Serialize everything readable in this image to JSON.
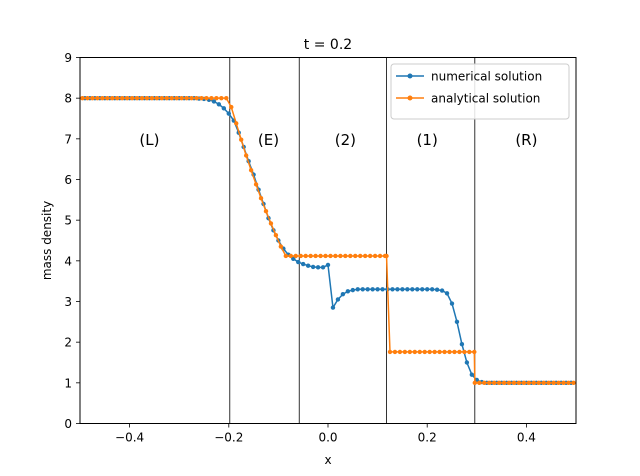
{
  "chart_data": {
    "type": "line",
    "title": "t = 0.2",
    "xlabel": "x",
    "ylabel": "mass density",
    "xlim": [
      -0.5,
      0.5
    ],
    "ylim": [
      0,
      9
    ],
    "xticks": [
      -0.4,
      -0.2,
      0.0,
      0.2,
      0.4
    ],
    "xtick_labels": [
      "−0.4",
      "−0.2",
      "0.0",
      "0.2",
      "0.4"
    ],
    "yticks": [
      0,
      1,
      2,
      3,
      4,
      5,
      6,
      7,
      8,
      9
    ],
    "ytick_labels": [
      "0",
      "1",
      "2",
      "3",
      "4",
      "5",
      "6",
      "7",
      "8",
      "9"
    ],
    "grid": false,
    "legend_position": "top-right",
    "region_boundaries": [
      -0.198,
      -0.058,
      0.118,
      0.296
    ],
    "region_labels": [
      {
        "text": "(L)",
        "x": -0.36,
        "y": 6.85
      },
      {
        "text": "(E)",
        "x": -0.12,
        "y": 6.85
      },
      {
        "text": "(2)",
        "x": 0.035,
        "y": 6.85
      },
      {
        "text": "(1)",
        "x": 0.2,
        "y": 6.85
      },
      {
        "text": "(R)",
        "x": 0.4,
        "y": 6.85
      }
    ],
    "series": [
      {
        "name": "numerical solution",
        "color": "#1f77b4",
        "x": [
          -0.49,
          -0.48,
          -0.47,
          -0.46,
          -0.45,
          -0.44,
          -0.43,
          -0.42,
          -0.41,
          -0.4,
          -0.39,
          -0.38,
          -0.37,
          -0.36,
          -0.35,
          -0.34,
          -0.33,
          -0.32,
          -0.31,
          -0.3,
          -0.29,
          -0.28,
          -0.27,
          -0.26,
          -0.25,
          -0.24,
          -0.23,
          -0.22,
          -0.21,
          -0.2,
          -0.19,
          -0.18,
          -0.17,
          -0.16,
          -0.15,
          -0.14,
          -0.13,
          -0.12,
          -0.11,
          -0.1,
          -0.09,
          -0.08,
          -0.07,
          -0.06,
          -0.05,
          -0.04,
          -0.03,
          -0.02,
          -0.01,
          0.0,
          0.01,
          0.02,
          0.03,
          0.04,
          0.05,
          0.06,
          0.07,
          0.08,
          0.09,
          0.1,
          0.11,
          0.12,
          0.13,
          0.14,
          0.15,
          0.16,
          0.17,
          0.18,
          0.19,
          0.2,
          0.21,
          0.22,
          0.23,
          0.24,
          0.25,
          0.26,
          0.27,
          0.28,
          0.29,
          0.3,
          0.31,
          0.32,
          0.33,
          0.34,
          0.35,
          0.36,
          0.37,
          0.38,
          0.39,
          0.4,
          0.41,
          0.42,
          0.43,
          0.44,
          0.45,
          0.46,
          0.47,
          0.48,
          0.49
        ],
        "y": [
          8.0,
          8.0,
          8.0,
          8.0,
          8.0,
          8.0,
          8.0,
          8.0,
          8.0,
          8.0,
          8.0,
          8.0,
          8.0,
          8.0,
          8.0,
          8.0,
          8.0,
          8.0,
          8.0,
          8.0,
          8.0,
          8.0,
          8.0,
          7.99,
          7.98,
          7.96,
          7.92,
          7.85,
          7.75,
          7.62,
          7.45,
          7.15,
          6.8,
          6.45,
          6.12,
          5.75,
          5.4,
          5.05,
          4.75,
          4.5,
          4.3,
          4.15,
          4.05,
          3.97,
          3.92,
          3.88,
          3.85,
          3.84,
          3.84,
          3.9,
          2.85,
          3.05,
          3.18,
          3.25,
          3.28,
          3.3,
          3.3,
          3.3,
          3.3,
          3.3,
          3.3,
          3.3,
          3.3,
          3.3,
          3.3,
          3.3,
          3.3,
          3.3,
          3.3,
          3.3,
          3.3,
          3.29,
          3.27,
          3.2,
          2.95,
          2.5,
          1.95,
          1.5,
          1.2,
          1.07,
          1.02,
          1.0,
          1.0,
          1.0,
          1.0,
          1.0,
          1.0,
          1.0,
          1.0,
          1.0,
          1.0,
          1.0,
          1.0,
          1.0,
          1.0,
          1.0,
          1.0,
          1.0,
          1.0
        ]
      },
      {
        "name": "analytical solution",
        "color": "#ff7f0e",
        "x": [
          -0.495,
          -0.485,
          -0.475,
          -0.465,
          -0.455,
          -0.445,
          -0.435,
          -0.425,
          -0.415,
          -0.405,
          -0.395,
          -0.385,
          -0.375,
          -0.365,
          -0.355,
          -0.345,
          -0.335,
          -0.325,
          -0.315,
          -0.305,
          -0.295,
          -0.285,
          -0.275,
          -0.265,
          -0.255,
          -0.245,
          -0.235,
          -0.225,
          -0.215,
          -0.205,
          -0.195,
          -0.185,
          -0.175,
          -0.165,
          -0.155,
          -0.145,
          -0.135,
          -0.125,
          -0.115,
          -0.105,
          -0.095,
          -0.085,
          -0.075,
          -0.065,
          -0.055,
          -0.045,
          -0.035,
          -0.025,
          -0.015,
          -0.005,
          0.005,
          0.015,
          0.025,
          0.035,
          0.045,
          0.055,
          0.065,
          0.075,
          0.085,
          0.095,
          0.105,
          0.115,
          0.118,
          0.125,
          0.135,
          0.145,
          0.155,
          0.165,
          0.175,
          0.185,
          0.195,
          0.205,
          0.215,
          0.225,
          0.235,
          0.245,
          0.255,
          0.265,
          0.275,
          0.285,
          0.295,
          0.296,
          0.305,
          0.315,
          0.325,
          0.335,
          0.345,
          0.355,
          0.365,
          0.375,
          0.385,
          0.395,
          0.405,
          0.415,
          0.425,
          0.435,
          0.445,
          0.455,
          0.465,
          0.475,
          0.485,
          0.495
        ],
        "y": [
          8.0,
          8.0,
          8.0,
          8.0,
          8.0,
          8.0,
          8.0,
          8.0,
          8.0,
          8.0,
          8.0,
          8.0,
          8.0,
          8.0,
          8.0,
          8.0,
          8.0,
          8.0,
          8.0,
          8.0,
          8.0,
          8.0,
          8.0,
          8.0,
          8.0,
          8.0,
          8.0,
          8.0,
          8.0,
          8.0,
          7.78,
          7.38,
          6.98,
          6.59,
          6.23,
          5.88,
          5.54,
          5.22,
          4.92,
          4.63,
          4.35,
          4.12,
          4.12,
          4.12,
          4.12,
          4.12,
          4.12,
          4.12,
          4.12,
          4.12,
          4.12,
          4.12,
          4.12,
          4.12,
          4.12,
          4.12,
          4.12,
          4.12,
          4.12,
          4.12,
          4.12,
          4.12,
          4.12,
          1.76,
          1.76,
          1.76,
          1.76,
          1.76,
          1.76,
          1.76,
          1.76,
          1.76,
          1.76,
          1.76,
          1.76,
          1.76,
          1.76,
          1.76,
          1.76,
          1.76,
          1.76,
          1.0,
          1.0,
          1.0,
          1.0,
          1.0,
          1.0,
          1.0,
          1.0,
          1.0,
          1.0,
          1.0,
          1.0,
          1.0,
          1.0,
          1.0,
          1.0,
          1.0,
          1.0,
          1.0,
          1.0,
          1.0
        ]
      }
    ]
  }
}
